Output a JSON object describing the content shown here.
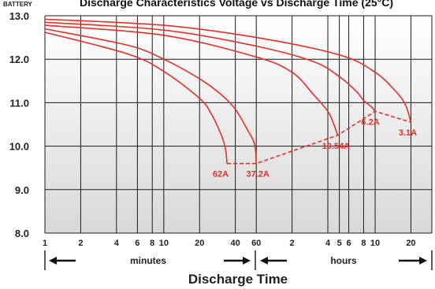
{
  "chart_data": {
    "type": "line",
    "title": "Discharge Characteristics Voltage vs Discharge Time (25°C)",
    "ylabel": "BATTERY",
    "xlabel": "Discharge Time",
    "ylim": [
      8.0,
      13.0
    ],
    "yticks": [
      "13.0",
      "12.0",
      "11.0",
      "10.0",
      "9.0",
      "8.0"
    ],
    "xscale": "log",
    "x_minutes_ticks": [
      "1",
      "2",
      "4",
      "6",
      "8",
      "10",
      "20",
      "40",
      "60"
    ],
    "x_hours_ticks": [
      "2",
      "4",
      "5",
      "6",
      "8",
      "10",
      "20"
    ],
    "unit_labels": {
      "minutes": "minutes",
      "hours": "hours"
    },
    "grid": true,
    "series": [
      {
        "name": "62A",
        "x_min": [
          1,
          5,
          10,
          20,
          25,
          30,
          33,
          34
        ],
        "y": [
          12.62,
          12.12,
          11.72,
          11.1,
          10.75,
          10.3,
          9.95,
          9.6
        ]
      },
      {
        "name": "37.2A",
        "x_min": [
          1,
          5,
          10,
          20,
          30,
          40,
          50,
          58,
          60
        ],
        "y": [
          12.7,
          12.32,
          12.0,
          11.55,
          11.2,
          10.85,
          10.4,
          10.05,
          9.6
        ]
      },
      {
        "name": "10.54A",
        "x_min": [
          1,
          10,
          60,
          120,
          180,
          240,
          270,
          290
        ],
        "y": [
          12.78,
          12.55,
          12.05,
          11.7,
          11.2,
          10.8,
          10.5,
          10.25
        ]
      },
      {
        "name": "6.2A",
        "x_min": [
          1,
          10,
          60,
          180,
          300,
          420,
          480,
          560,
          600
        ],
        "y": [
          12.85,
          12.67,
          12.3,
          11.95,
          11.6,
          11.25,
          11.05,
          10.9,
          10.8
        ]
      },
      {
        "name": "3.1A",
        "x_min": [
          1,
          10,
          60,
          300,
          600,
          900,
          1080,
          1200
        ],
        "y": [
          12.92,
          12.78,
          12.5,
          12.1,
          11.7,
          11.25,
          10.95,
          10.55
        ]
      }
    ],
    "end_voltage_line": {
      "x_min": [
        34,
        60,
        290,
        600,
        1200
      ],
      "y": [
        9.6,
        9.6,
        10.25,
        10.8,
        10.55
      ]
    }
  },
  "colors": {
    "curve": "#e0312b",
    "grid": "#1a1a1a",
    "band_top": "#ffffff",
    "band_bottom": "#dcdcdc"
  }
}
